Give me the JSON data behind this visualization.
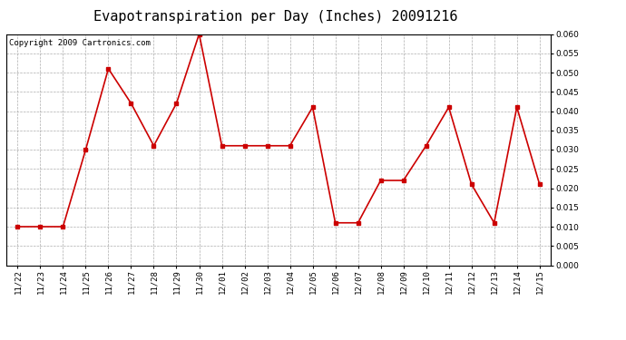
{
  "title": "Evapotranspiration per Day (Inches) 20091216",
  "copyright_text": "Copyright 2009 Cartronics.com",
  "dates": [
    "11/22",
    "11/23",
    "11/24",
    "11/25",
    "11/26",
    "11/27",
    "11/28",
    "11/29",
    "11/30",
    "12/01",
    "12/02",
    "12/03",
    "12/04",
    "12/05",
    "12/06",
    "12/07",
    "12/08",
    "12/09",
    "12/10",
    "12/11",
    "12/12",
    "12/13",
    "12/14",
    "12/15"
  ],
  "values": [
    0.01,
    0.01,
    0.01,
    0.03,
    0.051,
    0.042,
    0.031,
    0.042,
    0.06,
    0.031,
    0.031,
    0.031,
    0.031,
    0.041,
    0.011,
    0.011,
    0.022,
    0.022,
    0.031,
    0.041,
    0.021,
    0.011,
    0.041,
    0.021
  ],
  "line_color": "#cc0000",
  "marker": "s",
  "marker_size": 3,
  "ylim": [
    0.0,
    0.06
  ],
  "yticks": [
    0.0,
    0.005,
    0.01,
    0.015,
    0.02,
    0.025,
    0.03,
    0.035,
    0.04,
    0.045,
    0.05,
    0.055,
    0.06
  ],
  "bg_color": "#ffffff",
  "grid_color": "#999999",
  "title_fontsize": 11,
  "copyright_fontsize": 6.5,
  "tick_fontsize": 6.5
}
